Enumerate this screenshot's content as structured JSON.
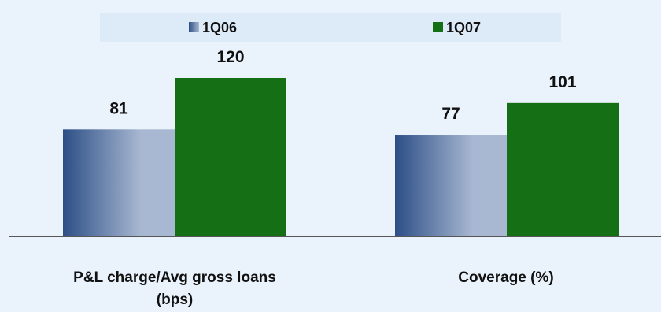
{
  "chart_data": {
    "type": "bar",
    "categories": [
      "P&L charge/Avg gross loans (bps)",
      "Coverage (%)"
    ],
    "category_lines": [
      [
        "P&L charge/Avg gross loans",
        "(bps)"
      ],
      [
        "Coverage (%)"
      ]
    ],
    "series": [
      {
        "name": "1Q06",
        "values": [
          81,
          77
        ],
        "color": "#2c4f86",
        "gradient_to": "#a9b8d2"
      },
      {
        "name": "1Q07",
        "values": [
          120,
          101
        ],
        "color": "#157015"
      }
    ],
    "data_labels": [
      "81",
      "77",
      "120",
      "101"
    ],
    "ylim": [
      0,
      170
    ],
    "grid": false,
    "legend_position": "top",
    "colors": {
      "background": "#eaf2fb",
      "legend_band": "#ddeaf7",
      "axis": "#222222",
      "text": "#111111"
    }
  }
}
